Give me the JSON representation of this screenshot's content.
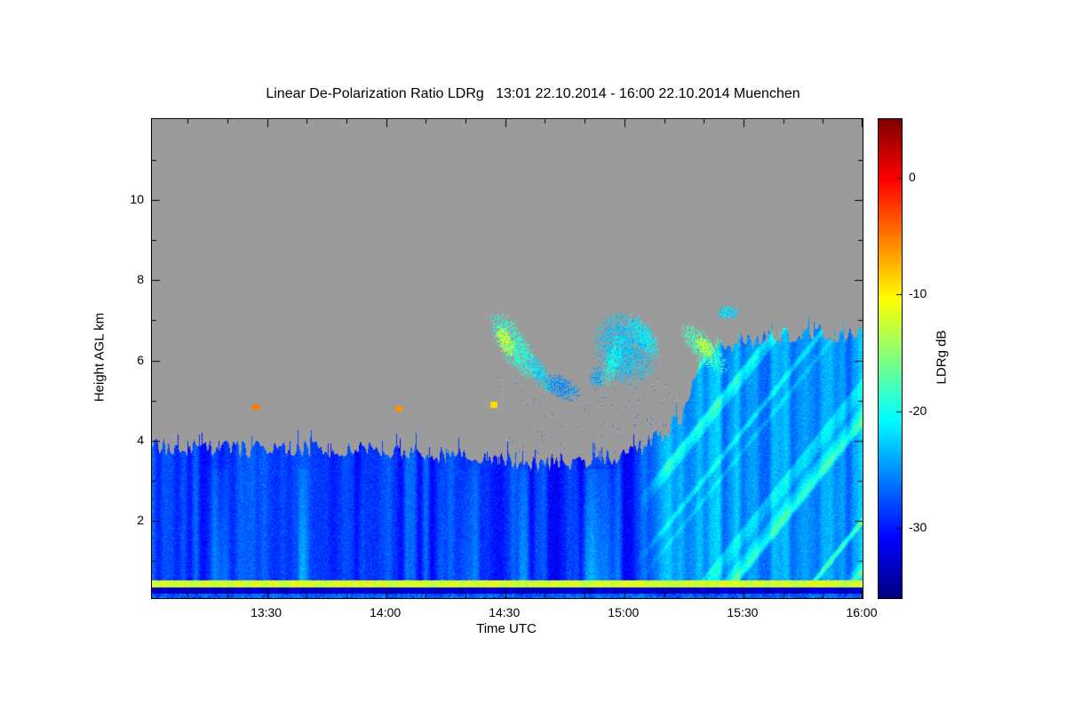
{
  "title": "Linear De-Polarization Ratio LDRg   13:01 22.10.2014 - 16:00 22.10.2014 Muenchen",
  "axes": {
    "xlabel": "Time UTC",
    "ylabel": "Height AGL km",
    "x_ticks": [
      {
        "label": "13:30",
        "minutes": 810
      },
      {
        "label": "14:00",
        "minutes": 840
      },
      {
        "label": "14:30",
        "minutes": 870
      },
      {
        "label": "15:00",
        "minutes": 900
      },
      {
        "label": "15:30",
        "minutes": 930
      },
      {
        "label": "16:00",
        "minutes": 960
      }
    ],
    "x_minor_step_minutes": 10,
    "y_ticks": [
      2,
      4,
      6,
      8,
      10
    ],
    "y_minor_ticks": [
      1,
      3,
      5,
      7,
      9,
      11
    ],
    "x_range_minutes": [
      781,
      960
    ],
    "y_range_km": [
      0.07,
      12.02
    ]
  },
  "colorbar": {
    "label": "LDRg dB",
    "ticks": [
      0,
      -10,
      -20,
      -30
    ],
    "value_range_db": [
      -36,
      5
    ]
  },
  "chart_data": {
    "type": "heatmap",
    "title": "Linear De-Polarization Ratio LDRg",
    "time_start": "13:01 22.10.2014",
    "time_end": "16:00 22.10.2014",
    "station": "Muenchen",
    "xlabel": "Time UTC",
    "ylabel": "Height AGL km",
    "value_label": "LDRg dB",
    "colormap": "jet",
    "value_range_db": [
      -36,
      5
    ],
    "no_data_color": "#9b9b9b",
    "x_range_minutes": [
      781,
      960
    ],
    "y_range_km": [
      0.07,
      12.02
    ],
    "boundary_layer": {
      "base_value_db": -29,
      "top_profile_km": [
        [
          781,
          3.85
        ],
        [
          800,
          3.8
        ],
        [
          830,
          3.8
        ],
        [
          850,
          3.7
        ],
        [
          865,
          3.55
        ],
        [
          880,
          3.45
        ],
        [
          893,
          3.55
        ],
        [
          903,
          3.75
        ],
        [
          910,
          4.2
        ],
        [
          915,
          4.7
        ],
        [
          919,
          6.0
        ],
        [
          924,
          6.35
        ],
        [
          935,
          6.55
        ],
        [
          948,
          6.7
        ],
        [
          960,
          6.65
        ]
      ],
      "right_mass_start_minutes": 903,
      "right_mass_brighten_db": 4.5
    },
    "surface_layers": [
      {
        "h_bottom_km": 0.34,
        "h_top_km": 0.52,
        "value_db": -12,
        "noise_db": 2.5
      },
      {
        "h_bottom_km": 0.2,
        "h_top_km": 0.34,
        "value_db": -33,
        "noise_db": 1.5
      },
      {
        "h_bottom_km": 0.07,
        "h_top_km": 0.2,
        "value_db": -27,
        "noise_db": 3
      }
    ],
    "cloud_patches": [
      {
        "t_min": 872,
        "h_km": 6.4,
        "dt_min": 6,
        "dh_km": 0.6,
        "tilt": -0.1,
        "value_db": -19
      },
      {
        "t_min": 870,
        "h_km": 6.5,
        "dt_min": 2.5,
        "dh_km": 0.35,
        "tilt": -0.08,
        "value_db": -12
      },
      {
        "t_min": 878,
        "h_km": 5.75,
        "dt_min": 4,
        "dh_km": 0.35,
        "tilt": -0.1,
        "value_db": -22
      },
      {
        "t_min": 884,
        "h_km": 5.35,
        "dt_min": 5,
        "dh_km": 0.3,
        "tilt": -0.03,
        "value_db": -25
      },
      {
        "t_min": 893,
        "h_km": 5.6,
        "dt_min": 2,
        "dh_km": 0.3,
        "tilt": 0,
        "value_db": -24
      },
      {
        "t_min": 900,
        "h_km": 6.3,
        "dt_min": 8,
        "dh_km": 0.9,
        "tilt": -0.02,
        "value_db": -23
      },
      {
        "t_min": 897,
        "h_km": 6.0,
        "dt_min": 3,
        "dh_km": 0.5,
        "tilt": 0.15,
        "value_db": -20
      },
      {
        "t_min": 905,
        "h_km": 6.6,
        "dt_min": 4,
        "dh_km": 0.4,
        "tilt": -0.1,
        "value_db": -21
      },
      {
        "t_min": 920,
        "h_km": 6.3,
        "dt_min": 6,
        "dh_km": 0.45,
        "tilt": -0.08,
        "value_db": -18
      },
      {
        "t_min": 920,
        "h_km": 6.35,
        "dt_min": 2.5,
        "dh_km": 0.25,
        "tilt": -0.06,
        "value_db": -12
      },
      {
        "t_min": 926,
        "h_km": 7.2,
        "dt_min": 3,
        "dh_km": 0.2,
        "tilt": 0,
        "value_db": -22
      }
    ],
    "point_echoes": [
      {
        "t_min": 807,
        "h_km": 4.85,
        "value_db": -5
      },
      {
        "t_min": 843,
        "h_km": 4.8,
        "value_db": -6
      },
      {
        "t_min": 867,
        "h_km": 4.9,
        "value_db": -9
      }
    ]
  }
}
